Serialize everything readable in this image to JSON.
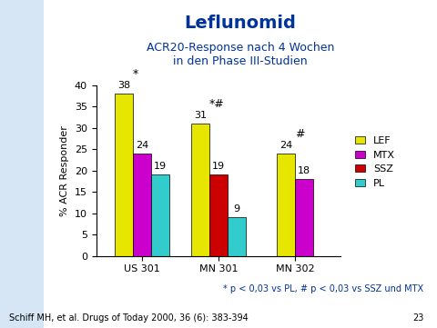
{
  "chart_data": {
    "type": "bar",
    "title": "Leflunomid",
    "subtitle": "ACR20-Response nach 4 Wochen\nin den Phase III-Studien",
    "y_label": "% ACR Responder",
    "categories": [
      "US 301",
      "MN 301",
      "MN 302"
    ],
    "series": [
      {
        "name": "LEF",
        "color": "#e6e600",
        "values": [
          38,
          31,
          24
        ]
      },
      {
        "name": "MTX",
        "color": "#cc00cc",
        "values": [
          24,
          null,
          18
        ]
      },
      {
        "name": "SSZ",
        "color": "#cc0000",
        "values": [
          null,
          19,
          null
        ]
      },
      {
        "name": "PL",
        "color": "#33cccc",
        "values": [
          19,
          9,
          null
        ]
      }
    ],
    "ylim": [
      0,
      40
    ],
    "yticks": [
      0,
      5,
      10,
      15,
      20,
      25,
      30,
      35,
      40
    ],
    "data_labels": true,
    "legend": "right",
    "annotations": [
      {
        "category": "US 301",
        "series": "LEF",
        "text": "*"
      },
      {
        "category": "MN 301",
        "series": "LEF",
        "text": "*#"
      },
      {
        "category": "MN 302",
        "series": "LEF",
        "text": "#"
      }
    ],
    "footnote": "* p < 0,03 vs PL, # p < 0,03 vs SSZ und MTX",
    "source": "Schiff MH, et al. Drugs of Today 2000, 36 (6): 383-394",
    "page_number": "23"
  }
}
